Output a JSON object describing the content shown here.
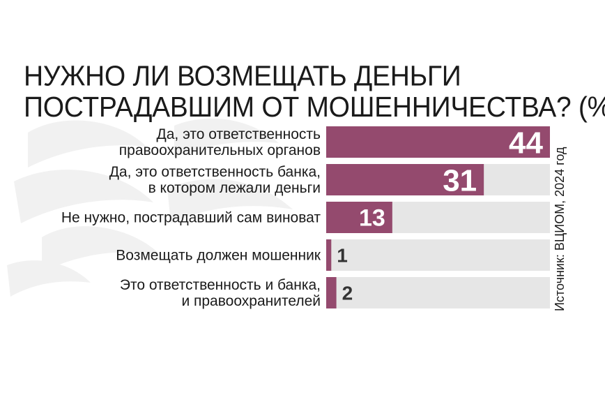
{
  "title_lines": [
    "НУЖНО ЛИ ВОЗМЕЩАТЬ ДЕНЬГИ",
    "ПОСТРАДАВШИМ ОТ МОШЕННИЧЕСТВА? (%)"
  ],
  "source": "Источник: ВЦИОМ, 2024 год",
  "colors": {
    "bar": "#944a6e",
    "track": "#e6e6e6",
    "value_outside": "#333333",
    "text": "#1a1a1a"
  },
  "chart_data": {
    "type": "bar",
    "orientation": "horizontal",
    "title": "НУЖНО ЛИ ВОЗМЕЩАТЬ ДЕНЬГИ ПОСТРАДАВШИМ ОТ МОШЕННИЧЕСТВА? (%)",
    "categories": [
      [
        "Да, это ответственность",
        "правоохранительных органов"
      ],
      [
        "Да, это ответственность банка,",
        "в котором лежали деньги"
      ],
      [
        "Не нужно, пострадавший сам виноват"
      ],
      [
        "Возмещать должен мошенник"
      ],
      [
        "Это ответственность и банка,",
        "и правоохранителей"
      ]
    ],
    "values": [
      44,
      31,
      13,
      1,
      2
    ],
    "xlim": [
      0,
      44
    ],
    "grid": false,
    "legend": "none"
  }
}
